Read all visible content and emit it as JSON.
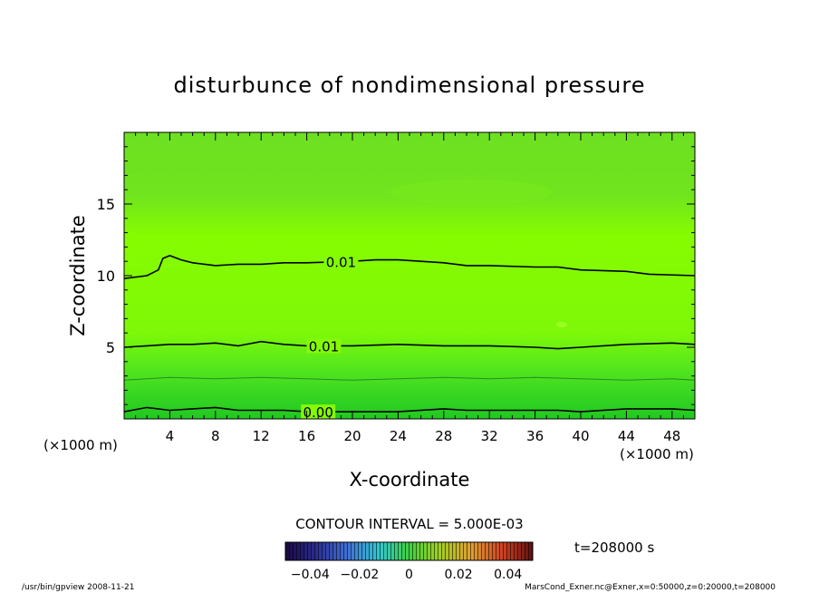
{
  "chart_data": {
    "type": "heatmap",
    "title": "disturbunce of nondimensional pressure",
    "xlabel": "X-coordinate",
    "ylabel": "Z-coordinate",
    "x_unit_left": "(×1000 m)",
    "x_unit_right": "(×1000 m)",
    "xlim": [
      0,
      50
    ],
    "ylim": [
      0,
      20
    ],
    "xticks": [
      4,
      8,
      12,
      16,
      20,
      24,
      28,
      32,
      36,
      40,
      44,
      48
    ],
    "xtick_labels": [
      "4",
      "8",
      "12",
      "16",
      "20",
      "24",
      "28",
      "32",
      "36",
      "40",
      "44",
      "48"
    ],
    "yticks": [
      5,
      10,
      15
    ],
    "ytick_labels": [
      "5",
      "10",
      "15"
    ],
    "contour_interval_text": "CONTOUR INTERVAL = 5.000E-03",
    "time_text": "t=208000 s",
    "colorbar": {
      "range": [
        -0.05,
        0.05
      ],
      "tick_values": [
        -0.04,
        -0.02,
        0,
        0.02,
        0.04
      ],
      "tick_labels": [
        "−0.04",
        "−0.02",
        "0",
        "0.02",
        "0.04"
      ]
    },
    "contours": [
      {
        "label": "0.01",
        "points": [
          [
            0,
            9.8
          ],
          [
            2,
            10.0
          ],
          [
            3,
            10.4
          ],
          [
            3.4,
            11.2
          ],
          [
            4,
            11.4
          ],
          [
            5,
            11.1
          ],
          [
            6,
            10.9
          ],
          [
            8,
            10.7
          ],
          [
            10,
            10.8
          ],
          [
            12,
            10.8
          ],
          [
            14,
            10.9
          ],
          [
            16,
            10.9
          ],
          [
            20,
            11.0
          ],
          [
            22,
            11.1
          ],
          [
            24,
            11.1
          ],
          [
            28,
            10.9
          ],
          [
            30,
            10.7
          ],
          [
            32,
            10.7
          ],
          [
            36,
            10.6
          ],
          [
            38,
            10.6
          ],
          [
            40,
            10.4
          ],
          [
            44,
            10.3
          ],
          [
            46,
            10.1
          ],
          [
            50,
            10.0
          ]
        ]
      },
      {
        "label": "0.01",
        "points": [
          [
            0,
            5.0
          ],
          [
            2,
            5.1
          ],
          [
            4,
            5.2
          ],
          [
            6,
            5.2
          ],
          [
            8,
            5.3
          ],
          [
            10,
            5.1
          ],
          [
            12,
            5.4
          ],
          [
            14,
            5.2
          ],
          [
            16,
            5.1
          ],
          [
            20,
            5.1
          ],
          [
            24,
            5.2
          ],
          [
            28,
            5.1
          ],
          [
            32,
            5.1
          ],
          [
            36,
            5.0
          ],
          [
            38,
            4.9
          ],
          [
            40,
            5.0
          ],
          [
            44,
            5.2
          ],
          [
            48,
            5.3
          ],
          [
            50,
            5.2
          ]
        ]
      },
      {
        "label": "0.00",
        "points": [
          [
            0,
            0.5
          ],
          [
            2,
            0.8
          ],
          [
            4,
            0.6
          ],
          [
            6,
            0.7
          ],
          [
            8,
            0.8
          ],
          [
            10,
            0.6
          ],
          [
            12,
            0.6
          ],
          [
            14,
            0.6
          ],
          [
            16,
            0.5
          ],
          [
            20,
            0.5
          ],
          [
            24,
            0.5
          ],
          [
            28,
            0.7
          ],
          [
            30,
            0.6
          ],
          [
            32,
            0.6
          ],
          [
            36,
            0.6
          ],
          [
            38,
            0.6
          ],
          [
            40,
            0.5
          ],
          [
            44,
            0.7
          ],
          [
            48,
            0.7
          ],
          [
            50,
            0.6
          ]
        ]
      },
      {
        "label": "",
        "points": [
          [
            0,
            2.7
          ],
          [
            4,
            2.9
          ],
          [
            8,
            2.8
          ],
          [
            12,
            2.9
          ],
          [
            16,
            2.8
          ],
          [
            20,
            2.7
          ],
          [
            24,
            2.8
          ],
          [
            28,
            2.9
          ],
          [
            32,
            2.8
          ],
          [
            36,
            2.9
          ],
          [
            40,
            2.8
          ],
          [
            44,
            2.7
          ],
          [
            48,
            2.8
          ],
          [
            50,
            2.7
          ]
        ]
      }
    ],
    "grid": false,
    "legend": "bottom-center"
  },
  "footer": {
    "left": "/usr/bin/gpview   2008-11-21",
    "right": "MarsCond_Exner.nc@Exner,x=0:50000,z=0:20000,t=208000"
  },
  "colors": {
    "field_top": "#66e420",
    "field_mid": "#88ff00",
    "field_low": "#44dd22",
    "field_bottom": "#22cc22",
    "contour": "#000000"
  }
}
